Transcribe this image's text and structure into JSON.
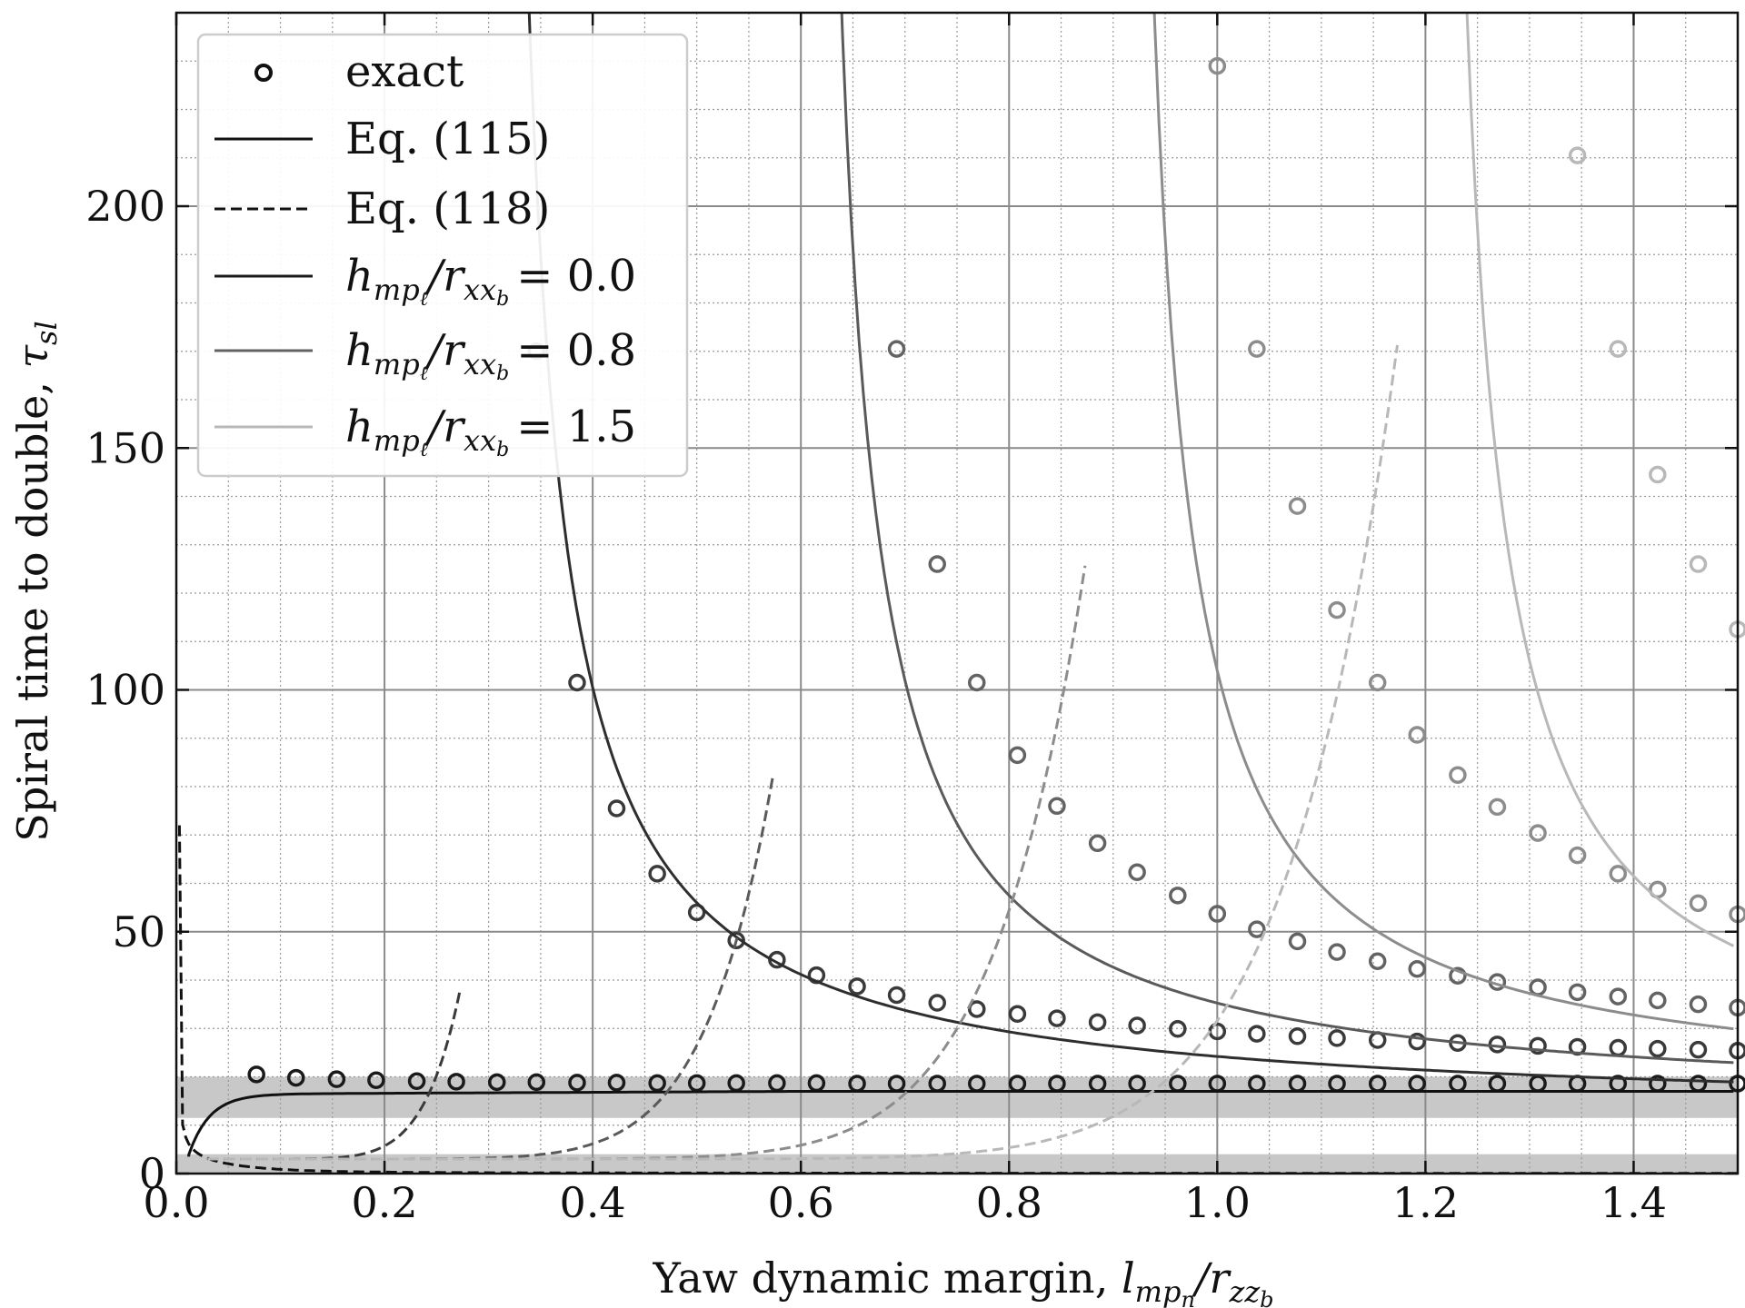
{
  "chart_data": {
    "type": "line",
    "xlabel": "Yaw dynamic margin, ",
    "xlabel_math": "l_{mp_n}/r_{zz_b}",
    "ylabel": "Spiral time to double, ",
    "ylabel_math": "τ_sl",
    "xlim": [
      0.0,
      1.5
    ],
    "ylim": [
      0,
      240
    ],
    "x_ticks": [
      "0.0",
      "0.2",
      "0.4",
      "0.6",
      "0.8",
      "1.0",
      "1.2",
      "1.4"
    ],
    "y_ticks": [
      "0",
      "50",
      "100",
      "150",
      "200"
    ],
    "grid": true,
    "legend_position": "top-left",
    "legend": [
      {
        "label": "exact",
        "style": "circle-marker",
        "color": "#111111"
      },
      {
        "label": "Eq. (115)",
        "style": "solid",
        "color": "#111111"
      },
      {
        "label": "Eq. (118)",
        "style": "dashed",
        "color": "#111111"
      },
      {
        "label_prefix": "h",
        "label_sub": "mp",
        "label_subsub": "ℓ",
        "label_mid": "/r",
        "label_sub2": "xx",
        "label_subsub2": "b",
        "label_value": "=  0.0",
        "style": "solid",
        "color": "#1a1a1a"
      },
      {
        "label_prefix": "h",
        "label_sub": "mp",
        "label_subsub": "ℓ",
        "label_mid": "/r",
        "label_sub2": "xx",
        "label_subsub2": "b",
        "label_value": "=  0.8",
        "style": "solid",
        "color": "#636363"
      },
      {
        "label_prefix": "h",
        "label_sub": "mp",
        "label_subsub": "ℓ",
        "label_mid": "/r",
        "label_sub2": "xx",
        "label_subsub2": "b",
        "label_value": "=  1.5",
        "style": "solid",
        "color": "#b8b8b8"
      }
    ],
    "bands": [
      {
        "y": [
          11.5,
          20
        ],
        "color": "#c8c8c8"
      },
      {
        "y": [
          0,
          4
        ],
        "color": "#c8c8c8"
      }
    ],
    "series": [
      {
        "kind": "exact",
        "color": "#1a1a1a",
        "x": [
          0.077,
          0.115,
          0.154,
          0.192,
          0.231,
          0.269,
          0.308,
          0.346,
          0.385,
          0.423,
          0.462,
          0.5,
          0.538,
          0.577,
          0.615,
          0.654,
          0.692,
          0.731,
          0.769,
          0.808,
          0.846,
          0.885,
          0.923,
          0.962,
          1.0,
          1.038,
          1.077,
          1.115,
          1.154,
          1.192,
          1.231,
          1.269,
          1.308,
          1.346,
          1.385,
          1.423,
          1.462,
          1.5
        ],
        "y": [
          20.5,
          19.8,
          19.5,
          19.3,
          19.1,
          19.0,
          18.9,
          18.9,
          18.8,
          18.8,
          18.7,
          18.7,
          18.7,
          18.7,
          18.7,
          18.6,
          18.6,
          18.6,
          18.6,
          18.6,
          18.6,
          18.6,
          18.6,
          18.6,
          18.6,
          18.6,
          18.6,
          18.6,
          18.6,
          18.6,
          18.6,
          18.6,
          18.6,
          18.6,
          18.6,
          18.6,
          18.6,
          18.6
        ]
      },
      {
        "kind": "exact",
        "color": "#3a3a3a",
        "x": [
          0.346,
          0.385,
          0.423,
          0.462,
          0.5,
          0.538,
          0.577,
          0.615,
          0.654,
          0.692,
          0.731,
          0.769,
          0.808,
          0.846,
          0.885,
          0.923,
          0.962,
          1.0,
          1.038,
          1.077,
          1.115,
          1.154,
          1.192,
          1.231,
          1.269,
          1.308,
          1.346,
          1.385,
          1.423,
          1.462,
          1.5
        ],
        "y": [
          170,
          101.5,
          75.5,
          62,
          54,
          48.2,
          44.2,
          41,
          38.7,
          36.9,
          35.3,
          34,
          33,
          32.1,
          31.3,
          30.6,
          29.9,
          29.4,
          28.9,
          28.4,
          28,
          27.6,
          27.3,
          27,
          26.7,
          26.4,
          26.2,
          26,
          25.8,
          25.6,
          25.4
        ]
      },
      {
        "kind": "exact",
        "color": "#636363",
        "x": [
          0.692,
          0.731,
          0.769,
          0.808,
          0.846,
          0.885,
          0.923,
          0.962,
          1.0,
          1.038,
          1.077,
          1.115,
          1.154,
          1.192,
          1.231,
          1.269,
          1.308,
          1.346,
          1.385,
          1.423,
          1.462,
          1.5
        ],
        "y": [
          170.5,
          126,
          101.5,
          86.5,
          76,
          68.3,
          62.3,
          57.5,
          53.7,
          50.5,
          48,
          45.8,
          43.9,
          42.3,
          40.9,
          39.6,
          38.5,
          37.5,
          36.6,
          35.8,
          35,
          34.3
        ]
      },
      {
        "kind": "exact",
        "color": "#8c8c8c",
        "x": [
          1.0,
          1.038,
          1.077,
          1.115,
          1.154,
          1.192,
          1.231,
          1.269,
          1.308,
          1.346,
          1.385,
          1.423,
          1.462,
          1.5
        ],
        "y": [
          229,
          170.5,
          138,
          116.5,
          101.5,
          90.7,
          82.4,
          75.8,
          70.4,
          65.8,
          62,
          58.7,
          55.9,
          53.6
        ]
      },
      {
        "kind": "exact",
        "color": "#b8b8b8",
        "x": [
          1.346,
          1.385,
          1.423,
          1.462,
          1.5
        ],
        "y": [
          210.5,
          170.5,
          144.5,
          126,
          112.5
        ]
      },
      {
        "kind": "eq115",
        "color": "#111111",
        "pole": 0.0,
        "A": 17.0,
        "B": 0.5,
        "xmin": 0.003,
        "note_shape": "flat-saturating"
      },
      {
        "kind": "eq115",
        "color": "#2e2e2e",
        "pole": 0.3,
        "A": 18.5
      },
      {
        "kind": "eq115",
        "color": "#5a5a5a",
        "pole": 0.6,
        "A": 20.0
      },
      {
        "kind": "eq115",
        "color": "#8c8c8c",
        "pole": 0.9,
        "A": 22.0
      },
      {
        "kind": "eq115",
        "color": "#b8b8b8",
        "pole": 1.2,
        "A": 24.0
      },
      {
        "kind": "eq118",
        "color": "#111111",
        "pole": 0.0,
        "ystart": 72,
        "xend": 1.5
      },
      {
        "kind": "eq118",
        "color": "#3a3a3a",
        "pole": 0.3,
        "xend": 0.275,
        "ytop": 40.5
      },
      {
        "kind": "eq118",
        "color": "#5a5a5a",
        "pole": 0.6,
        "xend": 0.575,
        "ytop": 84.5
      },
      {
        "kind": "eq118",
        "color": "#8c8c8c",
        "pole": 0.9,
        "xend": 0.875,
        "ytop": 128.5
      },
      {
        "kind": "eq118",
        "color": "#b8b8b8",
        "pole": 1.2,
        "xend": 1.175,
        "ytop": 174.5
      }
    ]
  }
}
